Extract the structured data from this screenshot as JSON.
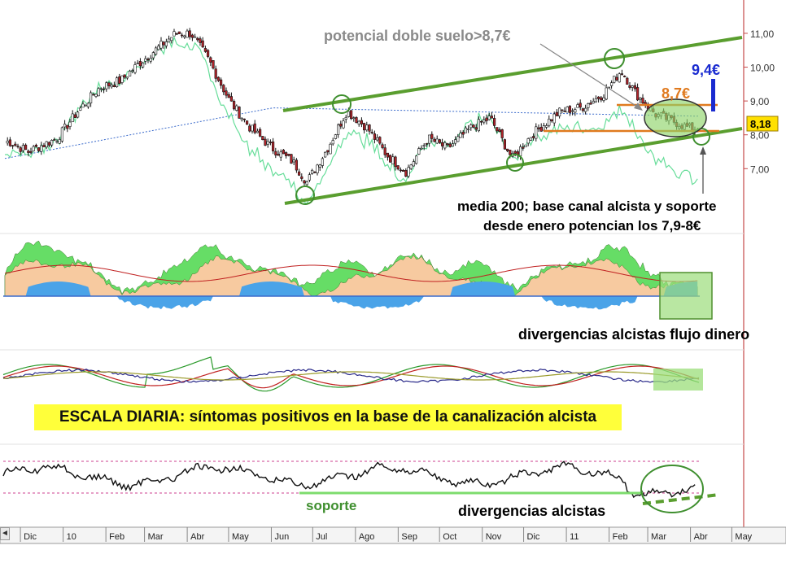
{
  "chart_data": {
    "type": "line",
    "title": "",
    "y_axis": {
      "ticks": [
        "11,00",
        "10,00",
        "9,00",
        "8,00",
        "7,00"
      ],
      "tick_values": [
        11,
        10,
        9,
        8,
        7
      ],
      "ylim": [
        6.4,
        11.6
      ]
    },
    "x_axis": {
      "ticks": [
        "Dic",
        "10",
        "Feb",
        "Mar",
        "Abr",
        "May",
        "Jun",
        "Jul",
        "Ago",
        "Sep",
        "Oct",
        "Nov",
        "Dic",
        "11",
        "Feb",
        "Mar",
        "Abr",
        "May"
      ]
    },
    "last_price_label": "8,18",
    "last_price": 8.18,
    "price_path": [
      [
        "2009-12-01",
        7.8
      ],
      [
        "2009-12-15",
        7.5
      ],
      [
        "2010-01-05",
        7.9
      ],
      [
        "2010-01-20",
        8.7
      ],
      [
        "2010-02-05",
        9.4
      ],
      [
        "2010-02-20",
        9.6
      ],
      [
        "2010-03-05",
        10.1
      ],
      [
        "2010-03-20",
        10.6
      ],
      [
        "2010-04-01",
        11.0
      ],
      [
        "2010-04-12",
        11.0
      ],
      [
        "2010-04-25",
        10.2
      ],
      [
        "2010-05-10",
        9.0
      ],
      [
        "2010-05-25",
        8.2
      ],
      [
        "2010-06-10",
        7.6
      ],
      [
        "2010-06-25",
        7.2
      ],
      [
        "2010-07-05",
        6.6
      ],
      [
        "2010-07-20",
        7.6
      ],
      [
        "2010-08-03",
        8.7
      ],
      [
        "2010-08-18",
        8.2
      ],
      [
        "2010-09-01",
        7.4
      ],
      [
        "2010-09-15",
        6.9
      ],
      [
        "2010-10-01",
        7.9
      ],
      [
        "2010-10-15",
        7.6
      ],
      [
        "2010-11-01",
        8.2
      ],
      [
        "2010-11-15",
        8.5
      ],
      [
        "2010-12-01",
        7.3
      ],
      [
        "2010-12-15",
        8.0
      ],
      [
        "2011-01-05",
        8.7
      ],
      [
        "2011-01-20",
        8.8
      ],
      [
        "2011-02-05",
        9.2
      ],
      [
        "2011-02-18",
        9.9
      ],
      [
        "2011-03-01",
        9.2
      ],
      [
        "2011-03-15",
        8.6
      ],
      [
        "2011-03-28",
        8.4
      ],
      [
        "2011-04-08",
        8.2
      ],
      [
        "2011-04-15",
        8.18
      ]
    ],
    "series": [
      {
        "name": "",
        "color": "#1a1a1a",
        "role": "price-candles"
      },
      {
        "name": "",
        "color": "#66dd99",
        "role": "comparison-line"
      },
      {
        "name": "",
        "color": "#3a6acb",
        "role": "dotted-average"
      },
      {
        "name": "",
        "color": "#e07a1f",
        "role": "horizontal-levels"
      },
      {
        "name": "",
        "color": "#5a9e2f",
        "role": "channel-lines"
      }
    ],
    "levels": {
      "resistance": 8.7,
      "support": 8.0,
      "target": 9.4
    }
  },
  "annotations": {
    "double_bottom": "potencial doble suelo>8,7€",
    "target_label": "9,4€",
    "level_label": "8,7€",
    "support_note_1": "media 200; base canal alcista y soporte",
    "support_note_2": "desde enero potencian los 7,9-8€",
    "flow_divergence": "divergencias alcistas flujo dinero",
    "banner": "ESCALA DIARIA: síntomas positivos en la base de la canalización alcista",
    "soporte": "soporte",
    "divergence": "divergencias alcistas"
  },
  "colors": {
    "channel": "#5a9e2f",
    "orange": "#e07a1f",
    "blue_label": "#1a2bd0",
    "price_tag_bg": "#ffe000",
    "banner_bg": "#ffff3a",
    "green_fill": "#66dd66",
    "orange_fill": "#f7caa0",
    "blue_fill": "#4aa3e8",
    "highlight_box": "#9bdd7a"
  },
  "ui": {
    "scroll_left_icon": "◄"
  }
}
